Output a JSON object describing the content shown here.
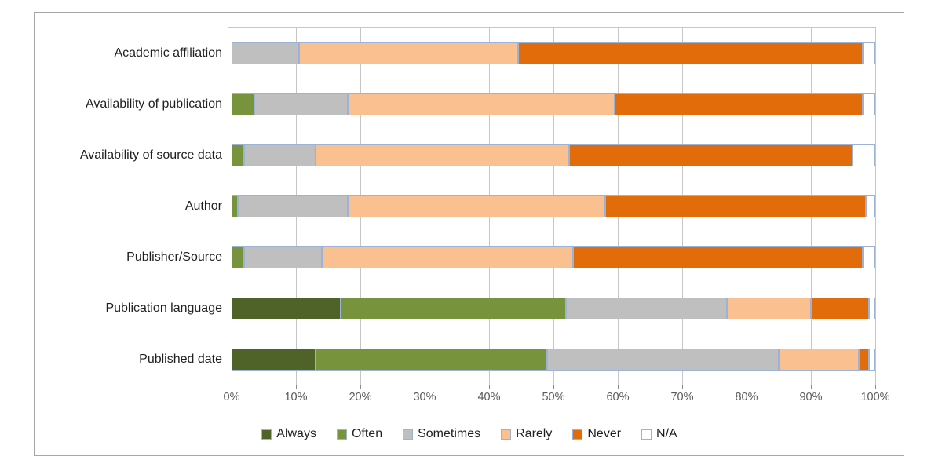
{
  "chart_data": {
    "type": "bar",
    "orientation": "horizontal",
    "stacked": true,
    "unit": "percent",
    "title": "",
    "categories": [
      "Academic affiliation",
      "Availability of publication",
      "Availability of source data",
      "Author",
      "Publisher/Source",
      "Publication language",
      "Published date"
    ],
    "series": [
      {
        "name": "Always",
        "color": "#4F6228",
        "values": [
          0,
          0,
          0,
          0,
          0,
          17,
          13
        ]
      },
      {
        "name": "Often",
        "color": "#77933C",
        "values": [
          0,
          3.5,
          2,
          1,
          2,
          35,
          36
        ]
      },
      {
        "name": "Sometimes",
        "color": "#BFBFBF",
        "values": [
          10.5,
          14.5,
          11,
          17,
          12,
          25,
          36
        ]
      },
      {
        "name": "Rarely",
        "color": "#FAC090",
        "values": [
          34,
          41.5,
          39.5,
          40,
          39,
          13,
          12.5
        ]
      },
      {
        "name": "Never",
        "color": "#E36C0A",
        "values": [
          53.5,
          38.5,
          44,
          40.5,
          45,
          9,
          1.5
        ]
      },
      {
        "name": "N/A",
        "color": "#FFFFFF",
        "values": [
          2,
          2,
          3.5,
          1.5,
          2,
          1,
          1
        ]
      }
    ],
    "x_axis": {
      "min": 0,
      "max": 100,
      "tick_step": 10,
      "tick_labels": [
        "0%",
        "10%",
        "20%",
        "30%",
        "40%",
        "50%",
        "60%",
        "70%",
        "80%",
        "90%",
        "100%"
      ]
    },
    "grid": true,
    "legend_position": "bottom",
    "styling": {
      "segment_border_color": "#9DB3D6",
      "gridline_color": "#C6C6C6",
      "axis_line_color": "#8C8C8C",
      "frame_border_color": "#A6A6A6",
      "category_label_color": "#1F1F1F",
      "tick_label_color": "#595959",
      "background_color": "#FFFFFF"
    }
  }
}
